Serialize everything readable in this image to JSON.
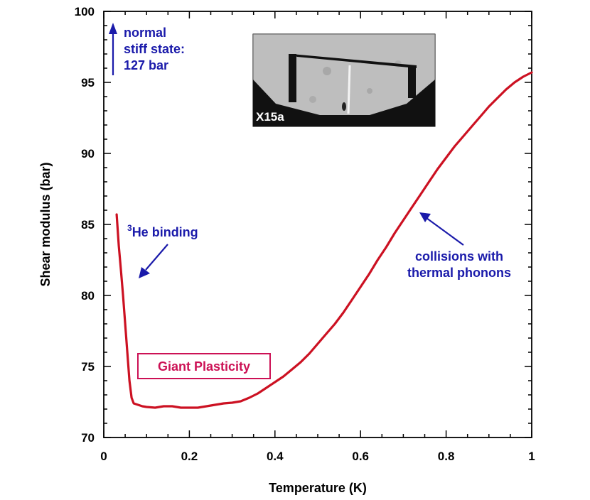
{
  "chart_data": {
    "type": "line",
    "title": "",
    "xlabel": "Temperature (K)",
    "ylabel": "Shear modulus  (bar)",
    "xlim": [
      0,
      1
    ],
    "ylim": [
      70,
      100
    ],
    "xticks": [
      0,
      0.2,
      0.4,
      0.6,
      0.8,
      1
    ],
    "xtick_labels": [
      "0",
      "0.2",
      "0.4",
      "0.6",
      "0.8",
      "1"
    ],
    "yticks": [
      70,
      75,
      80,
      85,
      90,
      95,
      100
    ],
    "ytick_labels": [
      "70",
      "75",
      "80",
      "85",
      "90",
      "95",
      "100"
    ],
    "series": [
      {
        "name": "shear modulus",
        "color": "#cc1122",
        "x": [
          0.03,
          0.035,
          0.04,
          0.045,
          0.05,
          0.055,
          0.06,
          0.065,
          0.07,
          0.08,
          0.09,
          0.1,
          0.12,
          0.14,
          0.16,
          0.18,
          0.2,
          0.22,
          0.24,
          0.26,
          0.28,
          0.3,
          0.32,
          0.34,
          0.36,
          0.38,
          0.4,
          0.42,
          0.44,
          0.46,
          0.48,
          0.5,
          0.52,
          0.54,
          0.56,
          0.58,
          0.6,
          0.62,
          0.64,
          0.66,
          0.68,
          0.7,
          0.72,
          0.74,
          0.76,
          0.78,
          0.8,
          0.82,
          0.84,
          0.86,
          0.88,
          0.9,
          0.92,
          0.94,
          0.96,
          0.98,
          1.0
        ],
        "y": [
          85.7,
          83.5,
          81.8,
          80.0,
          78.0,
          76.0,
          74.0,
          72.8,
          72.4,
          72.3,
          72.2,
          72.15,
          72.1,
          72.2,
          72.2,
          72.1,
          72.1,
          72.1,
          72.2,
          72.3,
          72.4,
          72.45,
          72.55,
          72.8,
          73.1,
          73.5,
          73.9,
          74.3,
          74.8,
          75.3,
          75.9,
          76.6,
          77.3,
          78.0,
          78.8,
          79.7,
          80.6,
          81.5,
          82.5,
          83.4,
          84.4,
          85.3,
          86.2,
          87.1,
          88.0,
          88.9,
          89.7,
          90.5,
          91.2,
          91.9,
          92.6,
          93.3,
          93.9,
          94.5,
          95.0,
          95.4,
          95.7
        ]
      }
    ],
    "annotations": [
      {
        "lines": [
          "normal",
          "stiff state:",
          "127 bar"
        ],
        "color": "#1a1aaa"
      },
      {
        "sup": "3",
        "text": "He binding",
        "color": "#1a1aaa"
      },
      {
        "lines": [
          "collisions with",
          "thermal phonons"
        ],
        "color": "#1a1aaa"
      },
      {
        "text": "Giant Plasticity",
        "color": "#cc1155"
      }
    ],
    "inset": {
      "label": "X15a"
    }
  }
}
